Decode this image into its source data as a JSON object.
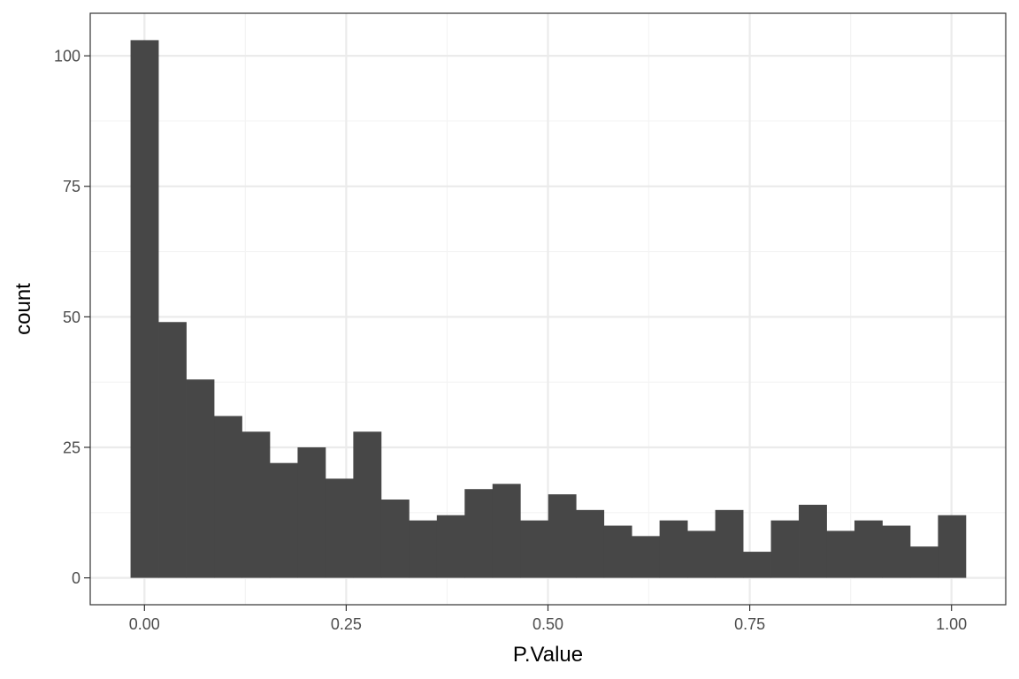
{
  "chart_data": {
    "type": "bar",
    "subtype": "histogram",
    "title": "",
    "xlabel": "P.Value",
    "ylabel": "count",
    "bin_width": 0.0345,
    "x_start": -0.01725,
    "counts": [
      103,
      49,
      38,
      31,
      28,
      22,
      25,
      19,
      28,
      15,
      11,
      12,
      17,
      18,
      11,
      16,
      13,
      10,
      8,
      11,
      9,
      13,
      5,
      11,
      14,
      9,
      11,
      10,
      6,
      12
    ],
    "xlim": [
      -0.0672,
      1.0672
    ],
    "ylim": [
      -5.15,
      108.15
    ],
    "x_ticks": [
      {
        "value": 0.0,
        "label": "0.00"
      },
      {
        "value": 0.25,
        "label": "0.25"
      },
      {
        "value": 0.5,
        "label": "0.50"
      },
      {
        "value": 0.75,
        "label": "0.75"
      },
      {
        "value": 1.0,
        "label": "1.00"
      }
    ],
    "y_ticks": [
      {
        "value": 0,
        "label": "0"
      },
      {
        "value": 25,
        "label": "25"
      },
      {
        "value": 50,
        "label": "50"
      },
      {
        "value": 75,
        "label": "75"
      },
      {
        "value": 100,
        "label": "100"
      }
    ],
    "x_minor_breaks": [
      0.125,
      0.375,
      0.625,
      0.875
    ],
    "y_minor_breaks": [
      12.5,
      37.5,
      62.5,
      87.5
    ],
    "grid": true,
    "legend": "none",
    "theme": "bw",
    "colors": {
      "bar": "#474747",
      "panel_border": "#333333",
      "grid_major": "#ebebeb",
      "grid_minor": "#f4f4f4",
      "tick_text": "#4d4d4d",
      "axis_title": "#000000"
    }
  }
}
